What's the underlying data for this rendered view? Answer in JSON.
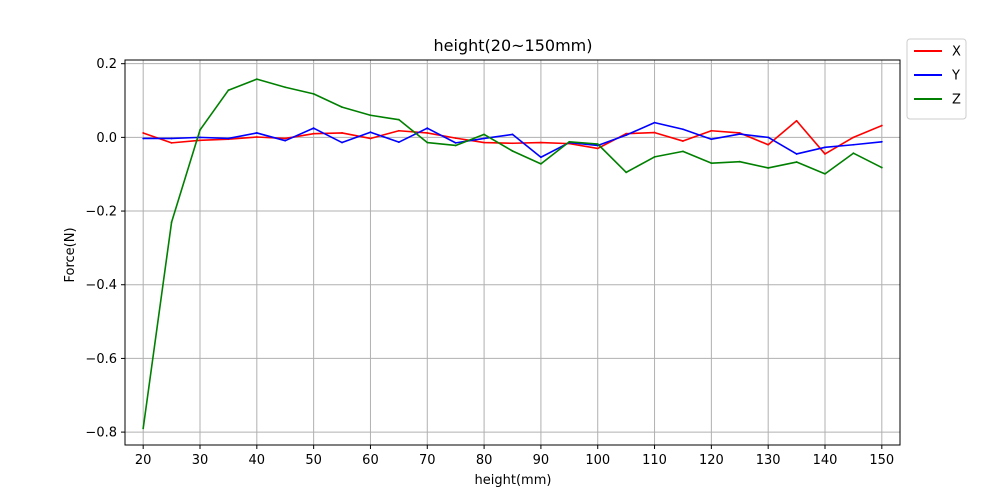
{
  "chart_data": {
    "type": "line",
    "title": "height(20~150mm)",
    "xlabel": "height(mm)",
    "ylabel": "Force(N)",
    "x": [
      20,
      25,
      30,
      35,
      40,
      45,
      50,
      55,
      60,
      65,
      70,
      75,
      80,
      85,
      90,
      95,
      100,
      105,
      110,
      115,
      120,
      125,
      130,
      135,
      140,
      145,
      150
    ],
    "xticks": [
      "20",
      "30",
      "40",
      "50",
      "60",
      "70",
      "80",
      "90",
      "100",
      "110",
      "120",
      "130",
      "140",
      "150"
    ],
    "yticks": [
      "0.2",
      "0.0",
      "−0.2",
      "−0.4",
      "−0.6",
      "−0.8"
    ],
    "xlim": [
      16.8,
      153.2
    ],
    "ylim": [
      -0.835,
      0.21
    ],
    "grid": true,
    "legend_position": "outside-top-right",
    "series": [
      {
        "name": "X",
        "color": "#ff0000",
        "values": [
          0.012,
          -0.015,
          -0.008,
          -0.005,
          0.001,
          -0.003,
          0.01,
          0.012,
          -0.003,
          0.018,
          0.012,
          -0.002,
          -0.014,
          -0.016,
          -0.014,
          -0.017,
          -0.03,
          0.01,
          0.013,
          -0.01,
          0.018,
          0.012,
          -0.02,
          0.045,
          -0.045,
          0.0,
          0.032
        ]
      },
      {
        "name": "Y",
        "color": "#0000ff",
        "values": [
          -0.003,
          -0.003,
          0.0,
          -0.003,
          0.012,
          -0.009,
          0.025,
          -0.014,
          0.014,
          -0.013,
          0.025,
          -0.015,
          -0.003,
          0.008,
          -0.054,
          -0.014,
          -0.022,
          0.006,
          0.04,
          0.022,
          -0.005,
          0.009,
          0.0,
          -0.045,
          -0.027,
          -0.02,
          -0.012
        ]
      },
      {
        "name": "Z",
        "color": "#008000",
        "values": [
          -0.79,
          -0.23,
          0.02,
          0.128,
          0.158,
          0.136,
          0.118,
          0.082,
          0.06,
          0.048,
          -0.014,
          -0.022,
          0.008,
          -0.037,
          -0.072,
          -0.012,
          -0.018,
          -0.095,
          -0.053,
          -0.038,
          -0.07,
          -0.066,
          -0.083,
          -0.067,
          -0.099,
          -0.043,
          -0.082
        ]
      }
    ]
  }
}
